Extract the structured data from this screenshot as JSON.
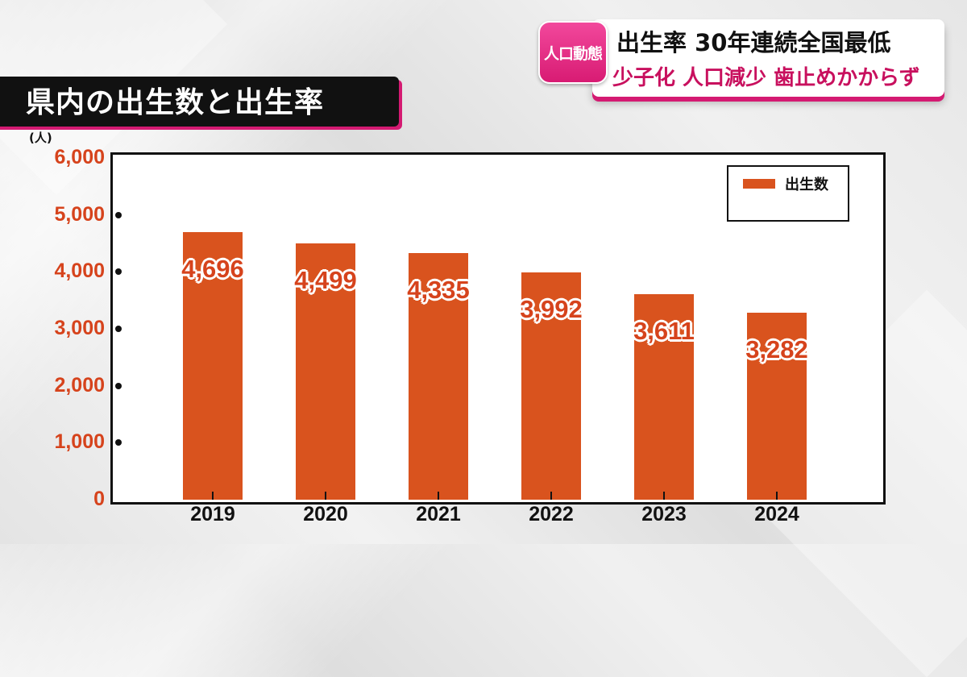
{
  "headline": {
    "category": "人口動態",
    "line1": "出生率 30年連続全国最低",
    "line2": "少子化 人口減少 歯止めかからず"
  },
  "chart_title": "県内の出生数と出生率",
  "colors": {
    "bar": "#d9531e",
    "axis_text": "#d6431c",
    "accent": "#d41a72"
  },
  "chart_data": {
    "type": "bar",
    "title": "県内の出生数と出生率",
    "ylabel": "(人)",
    "xlabel": "",
    "categories": [
      "2019",
      "2020",
      "2021",
      "2022",
      "2023",
      "2024"
    ],
    "series": [
      {
        "name": "出生数",
        "values": [
          4696,
          4499,
          4335,
          3992,
          3611,
          3282
        ],
        "labels": [
          "4,696",
          "4,499",
          "4,335",
          "3,992",
          "3,611",
          "3,282"
        ]
      }
    ],
    "ylim": [
      0,
      6000
    ],
    "yticks": [
      0,
      1000,
      2000,
      3000,
      4000,
      5000,
      6000
    ],
    "ytick_labels": [
      "0",
      "1,000",
      "2,000",
      "3,000",
      "4,000",
      "5,000",
      "6,000"
    ],
    "grid": false,
    "legend_position": "top-right"
  }
}
